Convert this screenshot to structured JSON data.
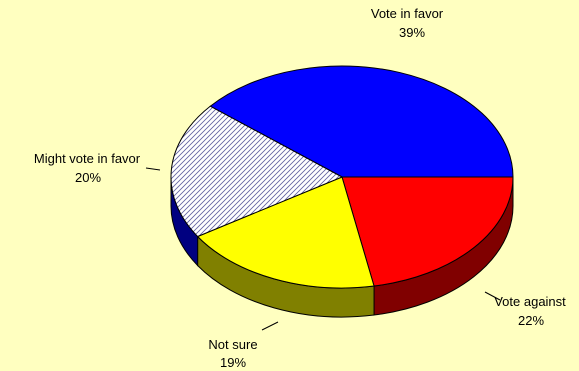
{
  "chart_data": {
    "type": "pie",
    "title": "",
    "slices": [
      {
        "label": "Vote in favor",
        "value": 39,
        "pct_label": "39%",
        "color": "#0000ff",
        "side_color": "#00008b",
        "pattern": "none"
      },
      {
        "label": "Vote against",
        "value": 22,
        "pct_label": "22%",
        "color": "#ff0000",
        "side_color": "#800000",
        "pattern": "none"
      },
      {
        "label": "Not sure",
        "value": 19,
        "pct_label": "19%",
        "color": "#ffff00",
        "side_color": "#808000",
        "pattern": "none"
      },
      {
        "label": "Might vote in favor",
        "value": 20,
        "pct_label": "20%",
        "color": "#ffffff",
        "side_color": "#000080",
        "pattern": "diagonal-hatch"
      }
    ],
    "style": "3d-pie",
    "legend": "none",
    "background": "#ffffc0",
    "outline_color": "#000000"
  }
}
